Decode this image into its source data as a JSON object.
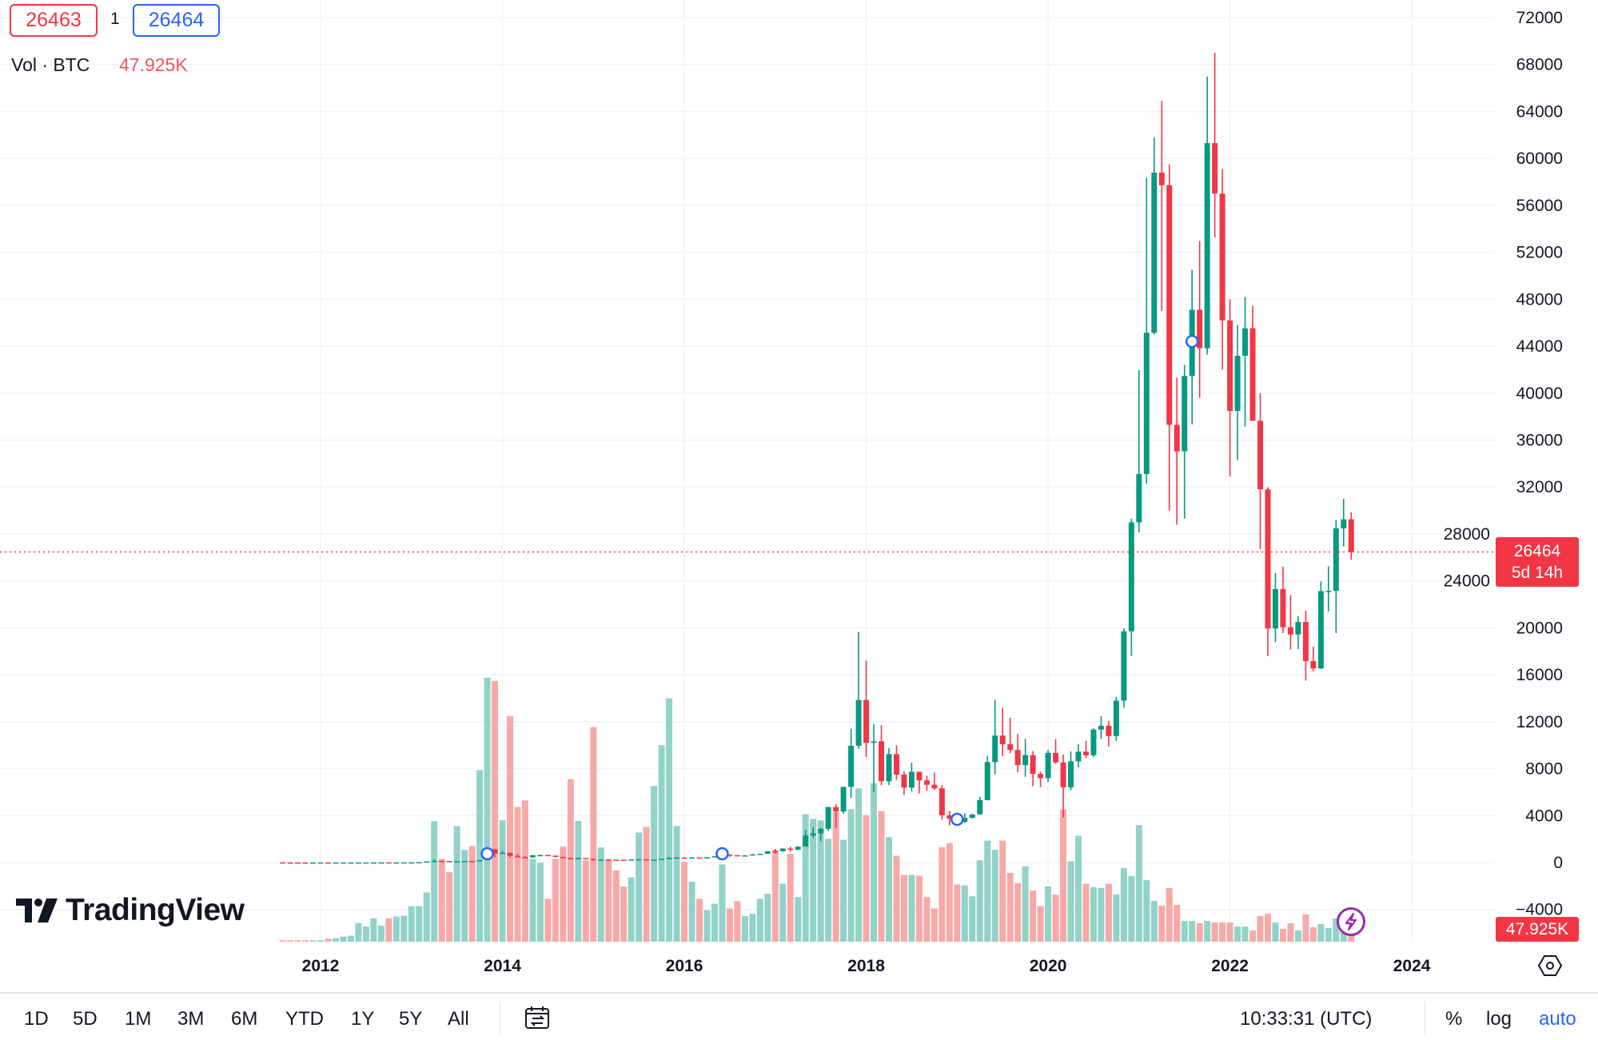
{
  "legend": {
    "bid": "26463",
    "spread": "1",
    "ask": "26464",
    "volume_label": "Vol · BTC",
    "volume_value": "47.925K"
  },
  "price_tag": {
    "price": "26464",
    "countdown": "5d 14h"
  },
  "volume_tag": "47.925K",
  "logo": "TradingView",
  "toolbar": {
    "ranges": [
      "1D",
      "5D",
      "1M",
      "3M",
      "6M",
      "YTD",
      "1Y",
      "5Y",
      "All"
    ],
    "time": "10:33:31 (UTC)",
    "percent": "%",
    "log": "log",
    "auto": "auto"
  },
  "icons": {
    "calendar": "calendar-range-icon",
    "settings": "hexagon-settings-icon",
    "bolt": "lightning-icon"
  },
  "colors": {
    "up": "#089981",
    "down": "#f23645",
    "up_volume": "#92d2c7",
    "down_volume": "#f7a9a7",
    "accent": "#2962ff",
    "bolt": "#9c27b0"
  },
  "chart_data": {
    "type": "candlestick",
    "interval": "1M",
    "y_ticks": [
      "72000",
      "68000",
      "64000",
      "60000",
      "56000",
      "52000",
      "48000",
      "44000",
      "40000",
      "36000",
      "32000",
      "28000",
      "24000",
      "20000",
      "16000",
      "12000",
      "8000",
      "4000",
      "0",
      "−4000"
    ],
    "ylim": [
      -4000,
      72000
    ],
    "x_ticks": [
      "2012",
      "2014",
      "2016",
      "2018",
      "2020",
      "2022",
      "2024"
    ],
    "grid": true,
    "last_price": 26464,
    "event_markers": [
      {
        "date": "2013-11",
        "price": 750
      },
      {
        "date": "2016-06",
        "price": 750
      },
      {
        "date": "2019-01",
        "price": 3680
      },
      {
        "date": "2021-08",
        "price": 44400
      }
    ],
    "columns": [
      "date",
      "open",
      "high",
      "low",
      "close",
      "volume_K"
    ],
    "candles": [
      [
        "2011-08",
        13.5,
        13.5,
        7.5,
        8.2,
        8
      ],
      [
        "2011-09",
        8.2,
        8.2,
        4.8,
        5.1,
        8
      ],
      [
        "2011-10",
        5.1,
        5.2,
        2.2,
        3.2,
        8
      ],
      [
        "2011-11",
        3.2,
        3.3,
        2,
        2.97,
        8
      ],
      [
        "2011-12",
        2.97,
        4.8,
        2.9,
        4.7,
        8
      ],
      [
        "2012-01",
        4.7,
        7.4,
        4.6,
        5.5,
        8
      ],
      [
        "2012-02",
        5.5,
        6.4,
        4.3,
        4.9,
        16
      ],
      [
        "2012-03",
        4.9,
        5.4,
        4.5,
        4.9,
        21
      ],
      [
        "2012-04",
        4.9,
        5.3,
        4.7,
        5.0,
        29
      ],
      [
        "2012-05",
        5.0,
        5.2,
        4.9,
        5.2,
        34
      ],
      [
        "2012-06",
        5.2,
        6.8,
        5.2,
        6.7,
        106
      ],
      [
        "2012-07",
        6.7,
        9.6,
        6.6,
        9.4,
        86
      ],
      [
        "2012-08",
        9.4,
        16.4,
        7.2,
        10.2,
        133
      ],
      [
        "2012-09",
        10.2,
        12.9,
        9.9,
        12.4,
        91
      ],
      [
        "2012-10",
        12.4,
        12.7,
        10.1,
        11.2,
        133
      ],
      [
        "2012-11",
        11.2,
        12.7,
        10.5,
        12.6,
        143
      ],
      [
        "2012-12",
        12.6,
        13.8,
        12.6,
        13.5,
        148
      ],
      [
        "2013-01",
        13.5,
        20.8,
        13.3,
        20.4,
        202
      ],
      [
        "2013-02",
        20.4,
        33.6,
        19.6,
        33.4,
        202
      ],
      [
        "2013-03",
        33.4,
        95,
        33,
        93,
        280
      ],
      [
        "2013-04",
        93,
        266,
        50,
        139,
        686
      ],
      [
        "2013-05",
        139,
        139,
        85,
        129,
        471
      ],
      [
        "2013-06",
        129,
        129,
        88,
        97,
        395
      ],
      [
        "2013-07",
        97,
        111,
        65,
        106,
        658
      ],
      [
        "2013-08",
        106,
        135,
        99,
        135,
        523
      ],
      [
        "2013-09",
        135,
        145,
        110,
        128,
        544
      ],
      [
        "2013-10",
        128,
        220,
        105,
        205,
        977
      ],
      [
        "2013-11",
        205,
        1163,
        200,
        1130,
        1503
      ],
      [
        "2013-12",
        1130,
        1150,
        450,
        750,
        1484
      ],
      [
        "2014-01",
        750,
        1000,
        740,
        830,
        691
      ],
      [
        "2014-02",
        830,
        840,
        420,
        570,
        1284
      ],
      [
        "2014-03",
        570,
        710,
        440,
        445,
        767
      ],
      [
        "2014-04",
        445,
        550,
        340,
        440,
        804
      ],
      [
        "2014-05",
        440,
        634,
        420,
        630,
        471
      ],
      [
        "2014-06",
        630,
        680,
        540,
        640,
        450
      ],
      [
        "2014-07",
        640,
        650,
        560,
        590,
        244
      ],
      [
        "2014-08",
        590,
        600,
        440,
        480,
        471
      ],
      [
        "2014-09",
        480,
        500,
        360,
        387,
        541
      ],
      [
        "2014-10",
        387,
        415,
        275,
        338,
        925
      ],
      [
        "2014-11",
        338,
        450,
        320,
        375,
        687
      ],
      [
        "2014-12",
        375,
        380,
        300,
        320,
        463
      ],
      [
        "2015-01",
        320,
        320,
        170,
        217,
        1222
      ],
      [
        "2015-02",
        217,
        280,
        210,
        254,
        536
      ],
      [
        "2015-03",
        254,
        300,
        235,
        244,
        463
      ],
      [
        "2015-04",
        244,
        260,
        210,
        236,
        405
      ],
      [
        "2015-05",
        236,
        247,
        225,
        230,
        314
      ],
      [
        "2015-06",
        230,
        268,
        220,
        264,
        366
      ],
      [
        "2015-07",
        264,
        315,
        255,
        284,
        621
      ],
      [
        "2015-08",
        284,
        285,
        195,
        230,
        653
      ],
      [
        "2015-09",
        230,
        245,
        225,
        236,
        886
      ],
      [
        "2015-10",
        236,
        330,
        235,
        314,
        1118
      ],
      [
        "2015-11",
        314,
        500,
        300,
        377,
        1385
      ],
      [
        "2015-12",
        377,
        465,
        350,
        430,
        658
      ],
      [
        "2016-01",
        430,
        460,
        350,
        368,
        455
      ],
      [
        "2016-02",
        368,
        440,
        365,
        437,
        341
      ],
      [
        "2016-03",
        437,
        440,
        400,
        416,
        244
      ],
      [
        "2016-04",
        416,
        465,
        410,
        448,
        179
      ],
      [
        "2016-05",
        448,
        550,
        440,
        531,
        216
      ],
      [
        "2016-06",
        531,
        780,
        525,
        673,
        439
      ],
      [
        "2016-07",
        673,
        705,
        470,
        624,
        189
      ],
      [
        "2016-08",
        624,
        624,
        530,
        573,
        231
      ],
      [
        "2016-09",
        573,
        625,
        570,
        608,
        146
      ],
      [
        "2016-10",
        608,
        720,
        600,
        699,
        159
      ],
      [
        "2016-11",
        699,
        755,
        690,
        742,
        244
      ],
      [
        "2016-12",
        742,
        980,
        740,
        964,
        273
      ],
      [
        "2017-01",
        964,
        1160,
        750,
        960,
        523
      ],
      [
        "2017-02",
        960,
        1220,
        930,
        1190,
        330
      ],
      [
        "2017-03",
        1190,
        1350,
        890,
        1080,
        500
      ],
      [
        "2017-04",
        1080,
        1380,
        1070,
        1350,
        254
      ],
      [
        "2017-05",
        1350,
        2790,
        1350,
        2300,
        726
      ],
      [
        "2017-06",
        2300,
        3000,
        2100,
        2480,
        699
      ],
      [
        "2017-07",
        2480,
        2950,
        1800,
        2875,
        690
      ],
      [
        "2017-08",
        2875,
        4740,
        2700,
        4730,
        585
      ],
      [
        "2017-09",
        4730,
        4980,
        2970,
        4340,
        736
      ],
      [
        "2017-10",
        4340,
        6450,
        4150,
        6440,
        580
      ],
      [
        "2017-11",
        6440,
        11400,
        5500,
        9950,
        754
      ],
      [
        "2017-12",
        9950,
        19660,
        9700,
        13850,
        873
      ],
      [
        "2018-01",
        13850,
        17200,
        9000,
        10200,
        720
      ],
      [
        "2018-02",
        10200,
        11800,
        6000,
        10330,
        902
      ],
      [
        "2018-03",
        10330,
        11700,
        6600,
        6930,
        744
      ],
      [
        "2018-04",
        6930,
        9750,
        6600,
        9240,
        595
      ],
      [
        "2018-05",
        9240,
        9990,
        7050,
        7490,
        489
      ],
      [
        "2018-06",
        7490,
        7770,
        5750,
        6390,
        380
      ],
      [
        "2018-07",
        6390,
        8500,
        6070,
        7730,
        380
      ],
      [
        "2018-08",
        7730,
        7750,
        5880,
        7000,
        375
      ],
      [
        "2018-09",
        7000,
        7400,
        6100,
        6625,
        254
      ],
      [
        "2018-10",
        6625,
        7680,
        6200,
        6320,
        189
      ],
      [
        "2018-11",
        6320,
        6600,
        3650,
        4020,
        538
      ],
      [
        "2018-12",
        4020,
        4400,
        3150,
        3740,
        561
      ],
      [
        "2019-01",
        3740,
        4100,
        3350,
        3460,
        325
      ],
      [
        "2019-02",
        3460,
        4200,
        3370,
        3810,
        320
      ],
      [
        "2019-03",
        3810,
        4150,
        3730,
        4100,
        258
      ],
      [
        "2019-04",
        4100,
        5600,
        4080,
        5320,
        463
      ],
      [
        "2019-05",
        5320,
        9080,
        5300,
        8560,
        575
      ],
      [
        "2019-06",
        8560,
        13880,
        7500,
        10820,
        523
      ],
      [
        "2019-07",
        10820,
        13190,
        9070,
        10080,
        575
      ],
      [
        "2019-08",
        10080,
        12330,
        9320,
        9590,
        392
      ],
      [
        "2019-09",
        9590,
        10950,
        7700,
        8300,
        333
      ],
      [
        "2019-10",
        8300,
        10540,
        7300,
        9150,
        429
      ],
      [
        "2019-11",
        9150,
        9500,
        6510,
        7550,
        291
      ],
      [
        "2019-12",
        7550,
        7750,
        6430,
        7190,
        202
      ],
      [
        "2020-01",
        7190,
        9590,
        6860,
        9350,
        314
      ],
      [
        "2020-02",
        9350,
        10520,
        8410,
        8530,
        268
      ],
      [
        "2020-03",
        8530,
        9190,
        3850,
        6410,
        752
      ],
      [
        "2020-04",
        6410,
        9480,
        6150,
        8620,
        458
      ],
      [
        "2020-05",
        8620,
        10070,
        8110,
        9450,
        603
      ],
      [
        "2020-06",
        9450,
        10380,
        8900,
        9140,
        330
      ],
      [
        "2020-07",
        9140,
        11440,
        8980,
        11330,
        310
      ],
      [
        "2020-08",
        11330,
        12470,
        10520,
        11650,
        306
      ],
      [
        "2020-09",
        11650,
        12070,
        9880,
        10780,
        330
      ],
      [
        "2020-10",
        10780,
        14100,
        10370,
        13800,
        268
      ],
      [
        "2020-11",
        13800,
        19950,
        13200,
        19700,
        419
      ],
      [
        "2020-12",
        19700,
        29300,
        17600,
        28990,
        373
      ],
      [
        "2021-01",
        28990,
        41950,
        28130,
        33110,
        664
      ],
      [
        "2021-02",
        33110,
        58350,
        32300,
        45140,
        350
      ],
      [
        "2021-03",
        45140,
        61780,
        45000,
        58790,
        232
      ],
      [
        "2021-04",
        58790,
        64900,
        47000,
        57720,
        205
      ],
      [
        "2021-05",
        57720,
        59500,
        30000,
        37300,
        305
      ],
      [
        "2021-06",
        37300,
        41330,
        28800,
        35040,
        209
      ],
      [
        "2021-07",
        35040,
        42400,
        29300,
        41460,
        118
      ],
      [
        "2021-08",
        41460,
        50500,
        37330,
        47100,
        118
      ],
      [
        "2021-09",
        47100,
        52950,
        39600,
        43820,
        105
      ],
      [
        "2021-10",
        43820,
        66970,
        43300,
        61300,
        118
      ],
      [
        "2021-11",
        61300,
        69000,
        53250,
        57000,
        109
      ],
      [
        "2021-12",
        57000,
        59100,
        42000,
        46200,
        109
      ],
      [
        "2022-01",
        46200,
        47990,
        32900,
        38480,
        109
      ],
      [
        "2022-02",
        38480,
        45800,
        34300,
        43180,
        86
      ],
      [
        "2022-03",
        43180,
        48190,
        37160,
        45520,
        86
      ],
      [
        "2022-04",
        45520,
        47450,
        37700,
        37640,
        64
      ],
      [
        "2022-05",
        37640,
        40000,
        26700,
        31800,
        146
      ],
      [
        "2022-06",
        31800,
        31980,
        17600,
        19940,
        159
      ],
      [
        "2022-07",
        19940,
        24670,
        18790,
        23300,
        109
      ],
      [
        "2022-08",
        23300,
        25200,
        19550,
        20050,
        73
      ],
      [
        "2022-09",
        20050,
        22800,
        18150,
        19430,
        105
      ],
      [
        "2022-10",
        19430,
        21000,
        18190,
        20500,
        64
      ],
      [
        "2022-11",
        20500,
        21480,
        15500,
        17170,
        155
      ],
      [
        "2022-12",
        17170,
        18380,
        16300,
        16540,
        82
      ],
      [
        "2023-01",
        16540,
        23950,
        16500,
        23130,
        100
      ],
      [
        "2023-02",
        23130,
        25250,
        21400,
        23150,
        77
      ],
      [
        "2023-03",
        23150,
        29200,
        19550,
        28470,
        132
      ],
      [
        "2023-04",
        28470,
        31000,
        26950,
        29250,
        114
      ],
      [
        "2023-05",
        29250,
        29850,
        25800,
        26464,
        47.925
      ]
    ]
  }
}
